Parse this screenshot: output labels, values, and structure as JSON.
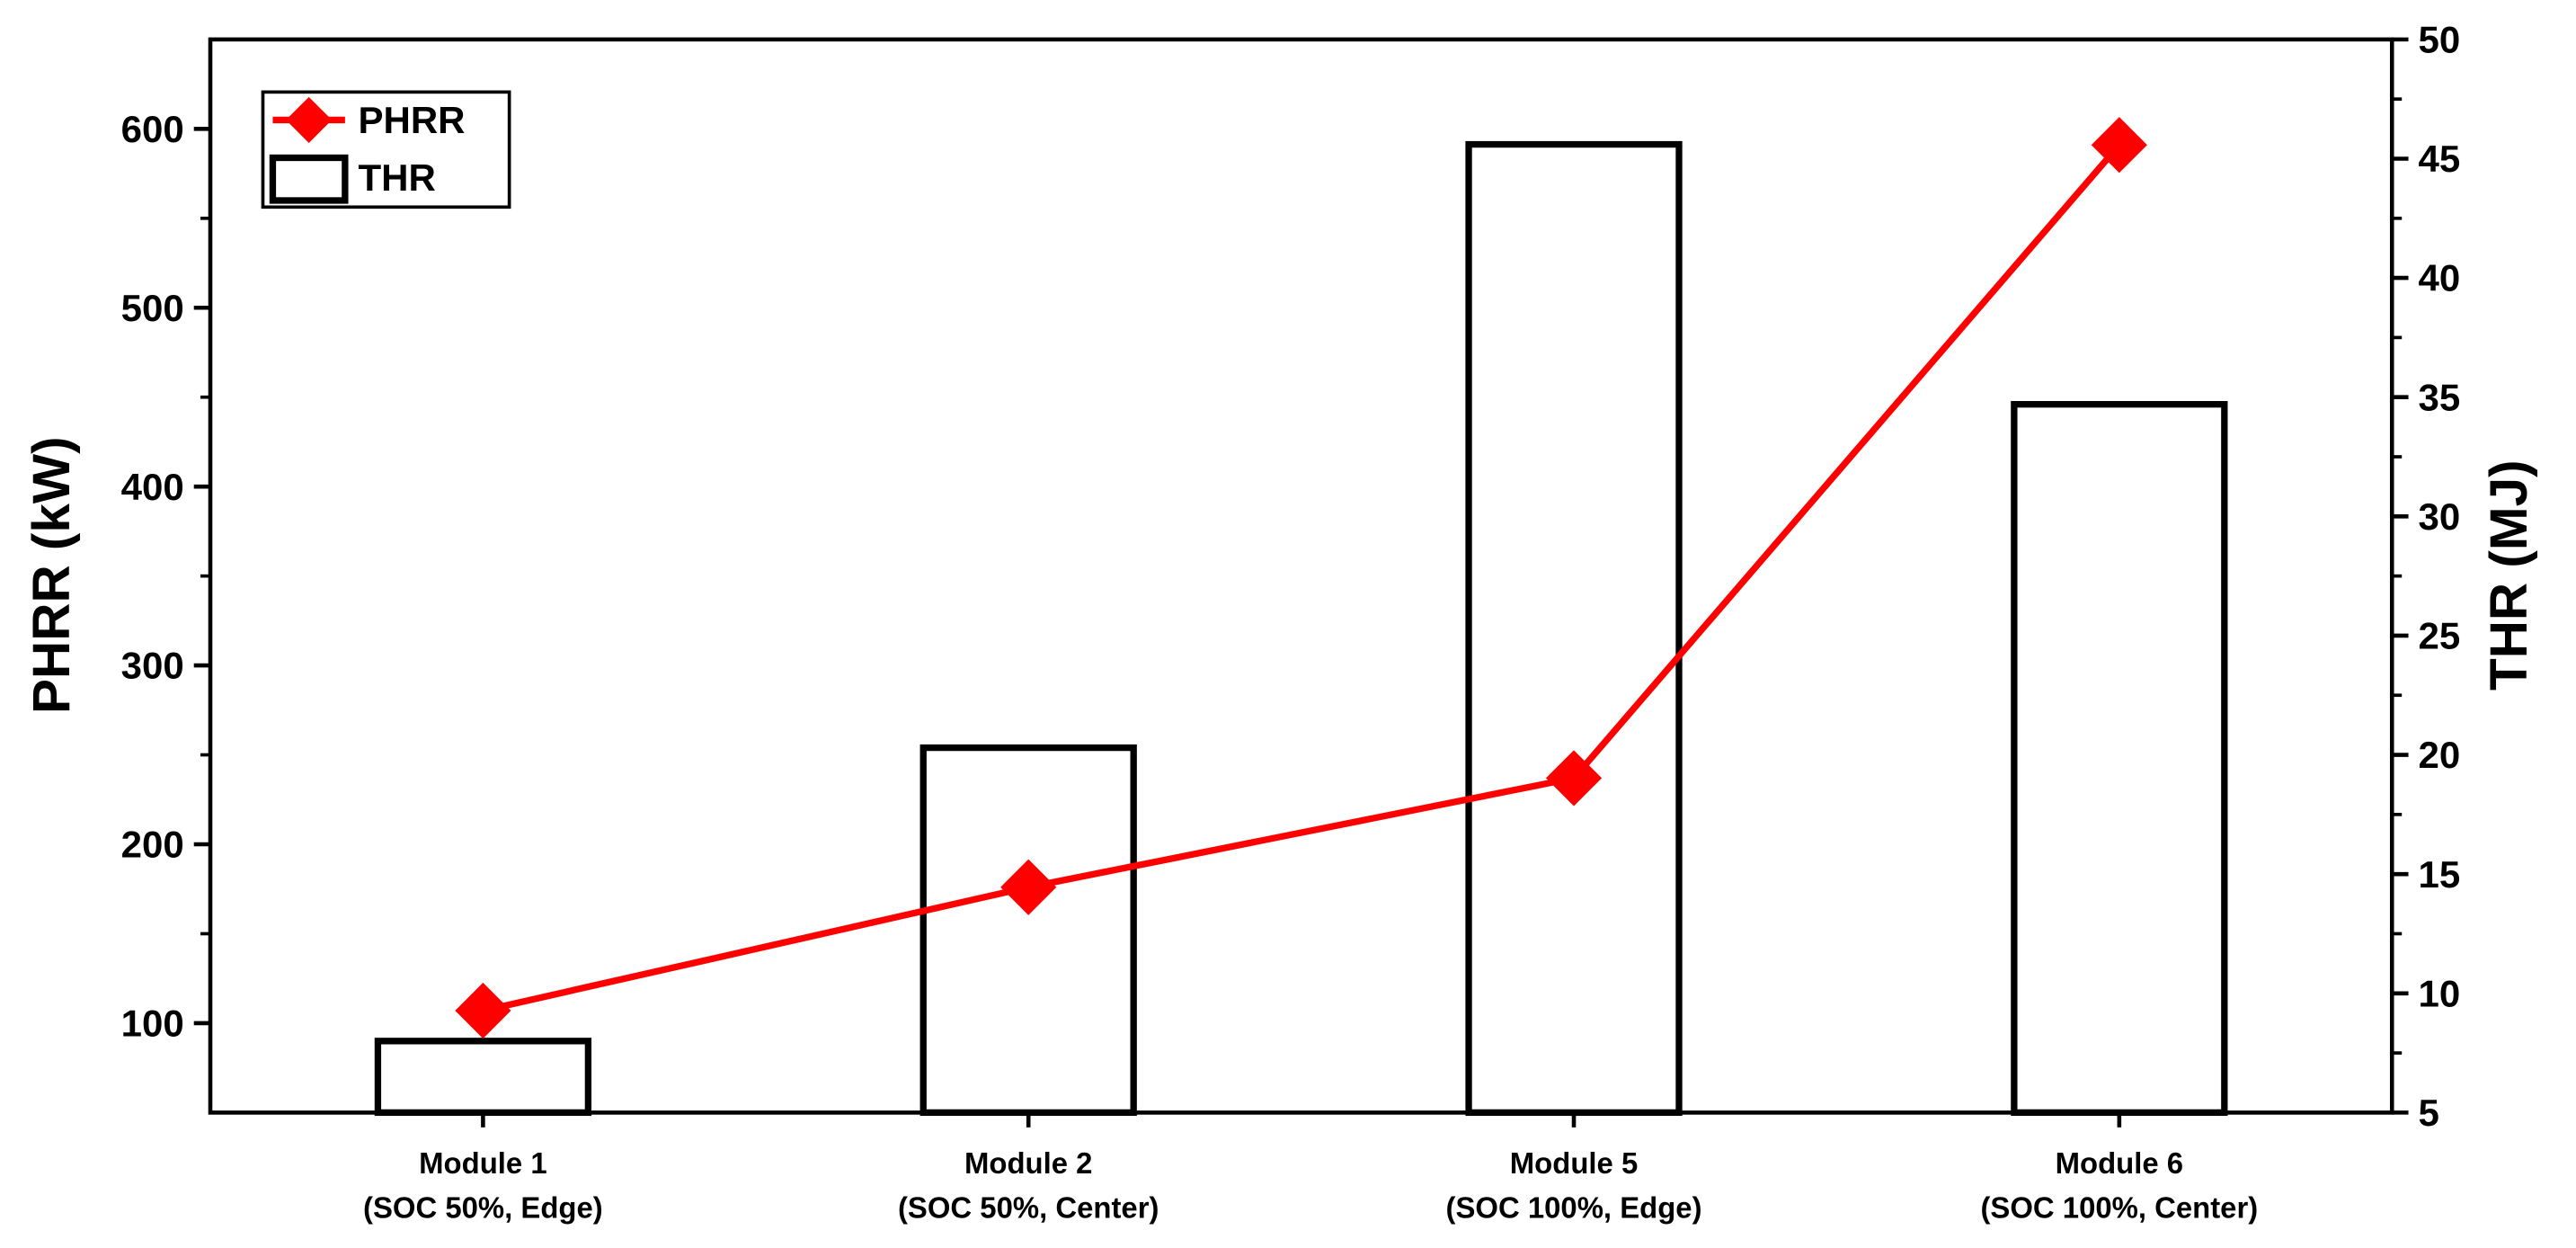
{
  "chart_data": {
    "type": "bar",
    "categories": [
      "Module 1\n(SOC 50%, Edge)",
      "Module 2\n(SOC 50%, Center)",
      "Module 5\n(SOC 100%, Edge)",
      "Module 6\n(SOC 100%, Center)"
    ],
    "y_label": "PHRR (kW)",
    "y2_label": "THR (MJ)",
    "ylim": [
      50,
      650
    ],
    "yticks": [
      100,
      200,
      300,
      400,
      500,
      600
    ],
    "y2lim": [
      5,
      50
    ],
    "y2ticks": [
      5,
      10,
      15,
      20,
      25,
      30,
      35,
      40,
      45,
      50
    ],
    "legend": "upper left",
    "series": [
      {
        "name": "PHRR",
        "type": "line",
        "axis": "y",
        "color": "#ff0000",
        "values": [
          107,
          176,
          237,
          591
        ]
      },
      {
        "name": "THR",
        "type": "bar",
        "axis": "y2",
        "color": "#000000",
        "values": [
          8.0,
          20.3,
          45.6,
          34.7
        ]
      }
    ]
  }
}
